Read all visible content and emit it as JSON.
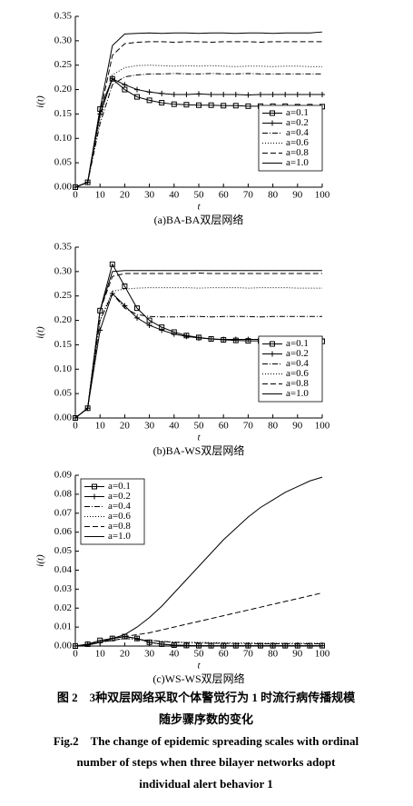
{
  "chart_data": [
    {
      "type": "line",
      "caption": "(a)BA-BA双层网络",
      "ylabel": "i(t)",
      "xlabel": "t",
      "x": [
        0,
        5,
        10,
        15,
        20,
        25,
        30,
        35,
        40,
        45,
        50,
        55,
        60,
        65,
        70,
        75,
        80,
        85,
        90,
        95,
        100
      ],
      "xlim": [
        0,
        100
      ],
      "xticks": [
        0,
        10,
        20,
        30,
        40,
        50,
        60,
        70,
        80,
        90,
        100
      ],
      "ylim": [
        0,
        0.35
      ],
      "yticks": [
        {
          "value": 0,
          "label": "0.00"
        },
        {
          "value": 0.05,
          "label": "0.05"
        },
        {
          "value": 0.1,
          "label": "0.10"
        },
        {
          "value": 0.15,
          "label": "0.15"
        },
        {
          "value": 0.2,
          "label": "0.20"
        },
        {
          "value": 0.25,
          "label": "0.25"
        },
        {
          "value": 0.3,
          "label": "0.30"
        },
        {
          "value": 0.35,
          "label": "0.35"
        }
      ],
      "legend": "lower right",
      "series": [
        {
          "name": "a=0.1",
          "color": "#000000",
          "dash": "solid",
          "marker": "square",
          "values": [
            0,
            0.01,
            0.16,
            0.222,
            0.2,
            0.185,
            0.178,
            0.173,
            0.17,
            0.169,
            0.168,
            0.168,
            0.167,
            0.167,
            0.166,
            0.166,
            0.166,
            0.166,
            0.165,
            0.165,
            0.165
          ]
        },
        {
          "name": "a=0.2",
          "color": "#000000",
          "dash": "solid",
          "marker": "plus",
          "values": [
            0,
            0.01,
            0.15,
            0.222,
            0.21,
            0.2,
            0.195,
            0.192,
            0.19,
            0.19,
            0.191,
            0.19,
            0.19,
            0.19,
            0.189,
            0.19,
            0.19,
            0.19,
            0.19,
            0.19,
            0.19
          ]
        },
        {
          "name": "a=0.4",
          "color": "#000000",
          "dash": "dashdot",
          "values": [
            0,
            0.01,
            0.13,
            0.21,
            0.226,
            0.23,
            0.232,
            0.232,
            0.233,
            0.232,
            0.232,
            0.233,
            0.232,
            0.232,
            0.233,
            0.232,
            0.232,
            0.232,
            0.232,
            0.232,
            0.232
          ]
        },
        {
          "name": "a=0.6",
          "color": "#000000",
          "dash": "dotted",
          "values": [
            0,
            0.01,
            0.14,
            0.23,
            0.245,
            0.249,
            0.25,
            0.249,
            0.248,
            0.249,
            0.248,
            0.249,
            0.248,
            0.247,
            0.248,
            0.248,
            0.247,
            0.248,
            0.248,
            0.247,
            0.247
          ]
        },
        {
          "name": "a=0.8",
          "color": "#000000",
          "dash": "dashed",
          "values": [
            0,
            0.01,
            0.15,
            0.27,
            0.294,
            0.297,
            0.298,
            0.298,
            0.297,
            0.298,
            0.298,
            0.297,
            0.298,
            0.298,
            0.298,
            0.297,
            0.298,
            0.298,
            0.298,
            0.298,
            0.298
          ]
        },
        {
          "name": "a=1.0",
          "color": "#000000",
          "dash": "solid",
          "values": [
            0,
            0.01,
            0.16,
            0.29,
            0.314,
            0.315,
            0.316,
            0.315,
            0.316,
            0.316,
            0.315,
            0.316,
            0.316,
            0.315,
            0.316,
            0.316,
            0.315,
            0.316,
            0.316,
            0.316,
            0.318
          ]
        }
      ]
    },
    {
      "type": "line",
      "caption": "(b)BA-WS双层网络",
      "ylabel": "i(t)",
      "xlabel": "t",
      "x": [
        0,
        5,
        10,
        15,
        20,
        25,
        30,
        35,
        40,
        45,
        50,
        55,
        60,
        65,
        70,
        75,
        80,
        85,
        90,
        95,
        100
      ],
      "xlim": [
        0,
        100
      ],
      "xticks": [
        0,
        10,
        20,
        30,
        40,
        50,
        60,
        70,
        80,
        90,
        100
      ],
      "ylim": [
        0,
        0.35
      ],
      "yticks": [
        {
          "value": 0,
          "label": "0.00"
        },
        {
          "value": 0.05,
          "label": "0.05"
        },
        {
          "value": 0.1,
          "label": "0.10"
        },
        {
          "value": 0.15,
          "label": "0.15"
        },
        {
          "value": 0.2,
          "label": "0.20"
        },
        {
          "value": 0.25,
          "label": "0.25"
        },
        {
          "value": 0.3,
          "label": "0.30"
        },
        {
          "value": 0.35,
          "label": "0.35"
        }
      ],
      "legend": "lower right",
      "series": [
        {
          "name": "a=0.1",
          "color": "#000000",
          "dash": "solid",
          "marker": "square",
          "values": [
            0,
            0.02,
            0.22,
            0.315,
            0.27,
            0.225,
            0.2,
            0.186,
            0.176,
            0.169,
            0.165,
            0.162,
            0.16,
            0.159,
            0.158,
            0.158,
            0.157,
            0.157,
            0.157,
            0.157,
            0.157
          ]
        },
        {
          "name": "a=0.2",
          "color": "#000000",
          "dash": "solid",
          "marker": "plus",
          "values": [
            0,
            0.02,
            0.18,
            0.255,
            0.23,
            0.205,
            0.19,
            0.18,
            0.172,
            0.167,
            0.164,
            0.162,
            0.161,
            0.161,
            0.161,
            0.161,
            0.161,
            0.162,
            0.162,
            0.162,
            0.162
          ]
        },
        {
          "name": "a=0.4",
          "color": "#000000",
          "dash": "dashdot",
          "values": [
            0,
            0.02,
            0.2,
            0.255,
            0.225,
            0.212,
            0.208,
            0.207,
            0.207,
            0.208,
            0.208,
            0.207,
            0.208,
            0.208,
            0.208,
            0.207,
            0.208,
            0.208,
            0.208,
            0.208,
            0.208
          ]
        },
        {
          "name": "a=0.6",
          "color": "#000000",
          "dash": "dotted",
          "values": [
            0,
            0.02,
            0.2,
            0.26,
            0.264,
            0.266,
            0.267,
            0.267,
            0.267,
            0.267,
            0.266,
            0.267,
            0.267,
            0.267,
            0.266,
            0.267,
            0.267,
            0.267,
            0.266,
            0.266,
            0.266
          ]
        },
        {
          "name": "a=0.8",
          "color": "#000000",
          "dash": "dashed",
          "values": [
            0,
            0.02,
            0.22,
            0.29,
            0.296,
            0.296,
            0.296,
            0.296,
            0.296,
            0.296,
            0.297,
            0.296,
            0.296,
            0.296,
            0.296,
            0.296,
            0.296,
            0.296,
            0.296,
            0.296,
            0.296
          ]
        },
        {
          "name": "a=1.0",
          "color": "#000000",
          "dash": "solid",
          "values": [
            0,
            0.02,
            0.22,
            0.3,
            0.302,
            0.302,
            0.302,
            0.302,
            0.302,
            0.302,
            0.302,
            0.302,
            0.302,
            0.302,
            0.302,
            0.302,
            0.302,
            0.302,
            0.302,
            0.302,
            0.302
          ]
        }
      ]
    },
    {
      "type": "line",
      "caption": "(c)WS-WS双层网络",
      "ylabel": "i(t)",
      "xlabel": "t",
      "x": [
        0,
        5,
        10,
        15,
        20,
        25,
        30,
        35,
        40,
        45,
        50,
        55,
        60,
        65,
        70,
        75,
        80,
        85,
        90,
        95,
        100
      ],
      "xlim": [
        0,
        100
      ],
      "xticks": [
        0,
        10,
        20,
        30,
        40,
        50,
        60,
        70,
        80,
        90,
        100
      ],
      "ylim": [
        0,
        0.09
      ],
      "yticks": [
        {
          "value": 0,
          "label": "0.00"
        },
        {
          "value": 0.01,
          "label": "0.01"
        },
        {
          "value": 0.02,
          "label": "0.02"
        },
        {
          "value": 0.03,
          "label": "0.03"
        },
        {
          "value": 0.04,
          "label": "0.04"
        },
        {
          "value": 0.05,
          "label": "0.05"
        },
        {
          "value": 0.06,
          "label": "0.06"
        },
        {
          "value": 0.07,
          "label": "0.07"
        },
        {
          "value": 0.08,
          "label": "0.08"
        },
        {
          "value": 0.09,
          "label": "0.09"
        }
      ],
      "legend": "upper left",
      "series": [
        {
          "name": "a=0.1",
          "color": "#000000",
          "dash": "solid",
          "marker": "square",
          "values": [
            0,
            0.001,
            0.003,
            0.004,
            0.005,
            0.004,
            0.002,
            0.001,
            0.0005,
            0.0003,
            0.0002,
            0.0002,
            0.0002,
            0.0002,
            0.0002,
            0.0002,
            0.0002,
            0.0002,
            0.0002,
            0.0002,
            0.0002
          ]
        },
        {
          "name": "a=0.2",
          "color": "#000000",
          "dash": "solid",
          "marker": "plus",
          "values": [
            0,
            0.001,
            0.002,
            0.004,
            0.005,
            0.004,
            0.002,
            0.001,
            0.0005,
            0.0003,
            0.0002,
            0.0002,
            0.0002,
            0.0002,
            0.0002,
            0.0002,
            0.0002,
            0.0002,
            0.0002,
            0.0002,
            0.0002
          ]
        },
        {
          "name": "a=0.4",
          "color": "#000000",
          "dash": "dashdot",
          "values": [
            0,
            0.0005,
            0.002,
            0.003,
            0.004,
            0.0035,
            0.003,
            0.0025,
            0.002,
            0.0018,
            0.0016,
            0.0015,
            0.0014,
            0.0013,
            0.0013,
            0.0012,
            0.0012,
            0.0012,
            0.0012,
            0.0012,
            0.0012
          ]
        },
        {
          "name": "a=0.6",
          "color": "#000000",
          "dash": "dotted",
          "values": [
            0,
            0.0005,
            0.002,
            0.003,
            0.004,
            0.0035,
            0.003,
            0.0025,
            0.0022,
            0.002,
            0.002,
            0.0018,
            0.0018,
            0.0017,
            0.0016,
            0.0016,
            0.0015,
            0.0015,
            0.0015,
            0.0015,
            0.0015
          ]
        },
        {
          "name": "a=0.8",
          "color": "#000000",
          "dash": "dashed",
          "values": [
            0,
            0.0005,
            0.002,
            0.004,
            0.005,
            0.006,
            0.007,
            0.0085,
            0.01,
            0.0115,
            0.013,
            0.0145,
            0.016,
            0.0175,
            0.019,
            0.0205,
            0.022,
            0.0235,
            0.025,
            0.0265,
            0.028
          ]
        },
        {
          "name": "a=1.0",
          "color": "#000000",
          "dash": "solid",
          "values": [
            0,
            0.0005,
            0.002,
            0.004,
            0.006,
            0.01,
            0.015,
            0.021,
            0.028,
            0.035,
            0.042,
            0.049,
            0.056,
            0.062,
            0.068,
            0.073,
            0.077,
            0.081,
            0.084,
            0.087,
            0.089
          ]
        }
      ]
    }
  ],
  "figure_caption": {
    "zh": [
      "图 2　3种双层网络采取个体警觉行为 1 时流行病传播规模",
      "随步骤序数的变化"
    ],
    "en": [
      "Fig.2　The change of epidemic spreading scales with ordinal",
      "number of steps when three bilayer networks adopt",
      "individual alert behavior 1"
    ]
  }
}
